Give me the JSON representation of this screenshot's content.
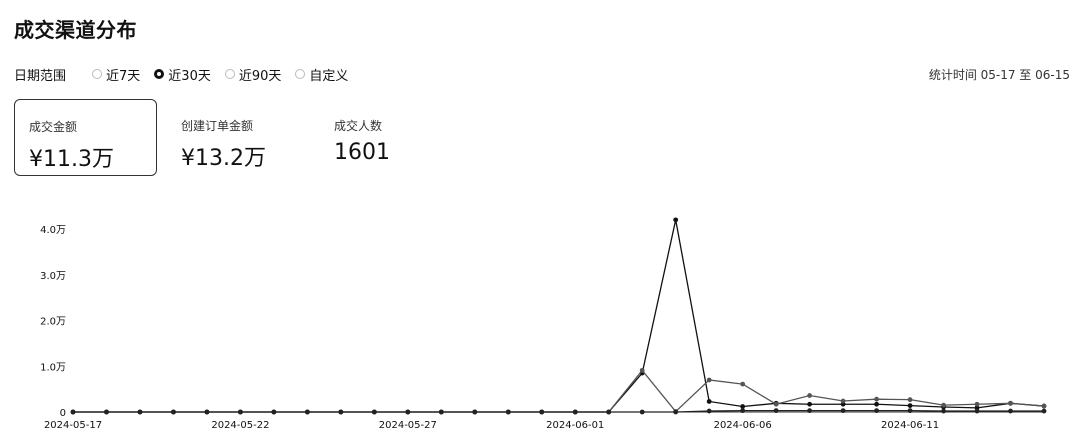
{
  "page": {
    "title": "成交渠道分布"
  },
  "filters": {
    "label": "日期范围",
    "options": [
      "近7天",
      "近30天",
      "近90天",
      "自定义"
    ],
    "selected_index": 1,
    "stat_range": "统计时间 05-17 至 06-15"
  },
  "metrics": [
    {
      "label": "成交金额",
      "value": "¥11.3万",
      "active": true
    },
    {
      "label": "创建订单金额",
      "value": "¥13.2万",
      "active": false
    },
    {
      "label": "成交人数",
      "value": "1601",
      "active": false
    }
  ],
  "chart_data": {
    "type": "line",
    "x": [
      "2024-05-17",
      "2024-05-18",
      "2024-05-19",
      "2024-05-20",
      "2024-05-21",
      "2024-05-22",
      "2024-05-23",
      "2024-05-24",
      "2024-05-25",
      "2024-05-26",
      "2024-05-27",
      "2024-05-28",
      "2024-05-29",
      "2024-05-30",
      "2024-05-31",
      "2024-06-01",
      "2024-06-02",
      "2024-06-03",
      "2024-06-04",
      "2024-06-05",
      "2024-06-06",
      "2024-06-07",
      "2024-06-08",
      "2024-06-09",
      "2024-06-10",
      "2024-06-11",
      "2024-06-12",
      "2024-06-13",
      "2024-06-14",
      "2024-06-15"
    ],
    "xticks": [
      "2024-05-17",
      "2024-05-22",
      "2024-05-27",
      "2024-06-01",
      "2024-06-06",
      "2024-06-11"
    ],
    "yticks": [
      "0",
      "1.0万",
      "2.0万",
      "3.0万",
      "4.0万"
    ],
    "ylim": [
      0,
      40000
    ],
    "grid": false,
    "series": [
      {
        "values": [
          0,
          0,
          0,
          0,
          0,
          0,
          0,
          0,
          0,
          0,
          0,
          0,
          0,
          0,
          0,
          0,
          0,
          8500,
          42000,
          2300,
          1200,
          1900,
          1700,
          1700,
          1700,
          1400,
          1100,
          900,
          1900,
          1300
        ],
        "color": "#111111"
      },
      {
        "values": [
          0,
          0,
          0,
          0,
          0,
          0,
          0,
          0,
          0,
          0,
          0,
          0,
          0,
          0,
          0,
          0,
          0,
          9100,
          100,
          7000,
          6100,
          1700,
          3600,
          2400,
          2800,
          2700,
          1500,
          1700,
          1900,
          1300
        ],
        "color": "#555555"
      },
      {
        "values": [
          0,
          0,
          0,
          0,
          0,
          0,
          0,
          0,
          0,
          0,
          0,
          0,
          0,
          0,
          0,
          0,
          0,
          0,
          0,
          200,
          300,
          300,
          300,
          300,
          300,
          300,
          200,
          200,
          200,
          200
        ],
        "color": "#222222"
      }
    ]
  }
}
